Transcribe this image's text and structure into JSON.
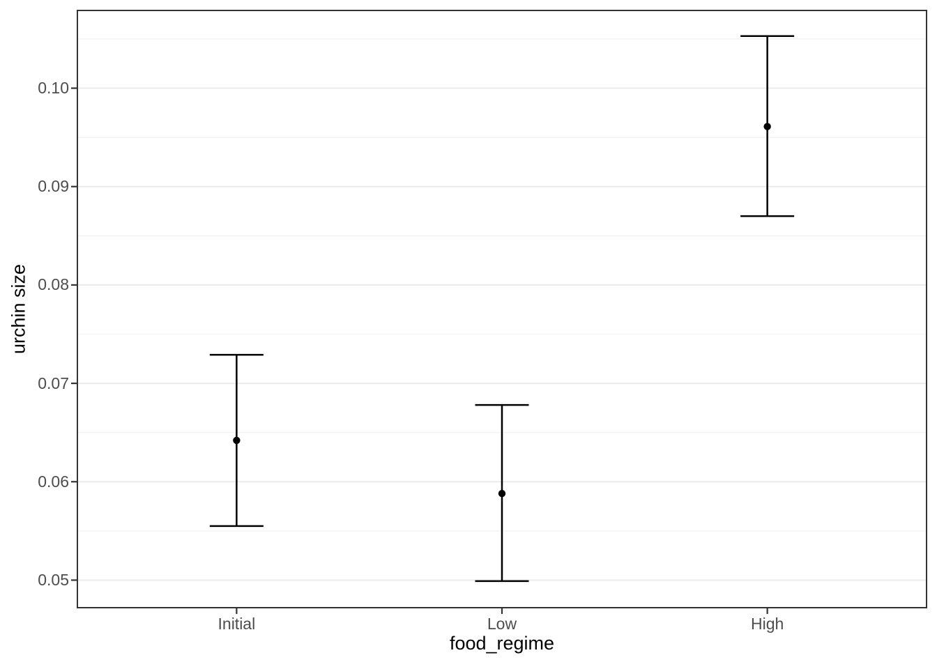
{
  "chart_data": {
    "type": "scatter",
    "subtype": "point-with-errorbars",
    "title": "",
    "xlabel": "food_regime",
    "ylabel": "urchin size",
    "categories": [
      "Initial",
      "Low",
      "High"
    ],
    "series": [
      {
        "name": "mean",
        "values": [
          0.0642,
          0.0588,
          0.0961
        ]
      },
      {
        "name": "ci_lower",
        "values": [
          0.0555,
          0.0499,
          0.087
        ]
      },
      {
        "name": "ci_upper",
        "values": [
          0.0729,
          0.0678,
          0.1053
        ]
      }
    ],
    "y_ticks": [
      0.05,
      0.06,
      0.07,
      0.08,
      0.09,
      0.1
    ],
    "y_tick_labels": [
      "0.05",
      "0.06",
      "0.07",
      "0.08",
      "0.09",
      "0.10"
    ],
    "y_minor_ticks": [
      0.055,
      0.065,
      0.075,
      0.085,
      0.095,
      0.105
    ],
    "ylim": [
      0.0472,
      0.1079
    ],
    "grid": true,
    "legend": false,
    "colors": {
      "background": "#ffffff",
      "panel_background": "#ffffff",
      "panel_border": "#333333",
      "grid_major": "#ebebeb",
      "grid_minor": "#f2f2f2",
      "tick_mark": "#333333",
      "tick_label": "#4d4d4d",
      "axis_title": "#000000",
      "errorbar": "#000000",
      "point": "#000000"
    }
  }
}
